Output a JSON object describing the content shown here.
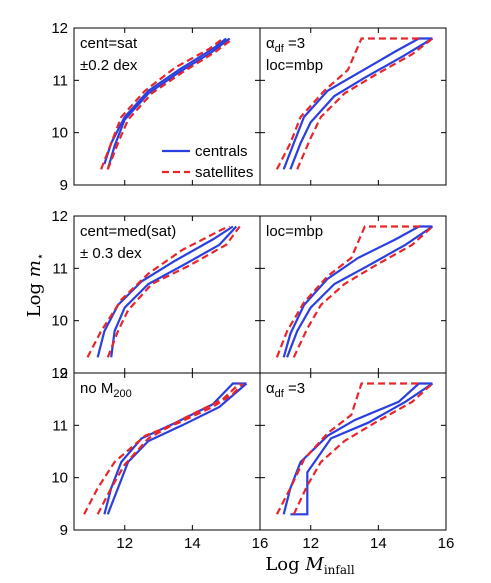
{
  "figure": {
    "xlabel_main": "Log ",
    "xlabel_math": "M",
    "xlabel_sub": "infall",
    "ylabel_main": "Log ",
    "ylabel_math": "m",
    "ylabel_sub": "⋆"
  },
  "colors": {
    "centrals": "#2a3fe0",
    "satellites": "#e8262a",
    "axes": "#000000"
  },
  "legend": {
    "items": [
      {
        "label": "centrals",
        "style": "solid",
        "color": "#2a3fe0"
      },
      {
        "label": "satellites",
        "style": "dashed",
        "color": "#e8262a"
      }
    ],
    "panel": 0
  },
  "chart_data": [
    {
      "type": "line",
      "panel_label_lines": [
        "cent=sat",
        "±0.2 dex"
      ],
      "xlim": [
        10.5,
        16
      ],
      "ylim": [
        9,
        12
      ],
      "xticks": [
        12,
        14,
        16
      ],
      "yticks": [
        9,
        10,
        11,
        12
      ],
      "show_xticklabels": false,
      "show_yticklabels": true,
      "series": [
        {
          "name": "centrals",
          "style": "solid",
          "lines": [
            [
              [
                11.4,
                9.4
              ],
              [
                11.6,
                9.8
              ],
              [
                12.0,
                10.3
              ],
              [
                12.7,
                10.8
              ],
              [
                13.6,
                11.2
              ],
              [
                14.6,
                11.6
              ],
              [
                15.0,
                11.8
              ]
            ],
            [
              [
                11.5,
                9.3
              ],
              [
                11.7,
                9.75
              ],
              [
                12.0,
                10.25
              ],
              [
                12.7,
                10.75
              ],
              [
                13.6,
                11.15
              ],
              [
                14.6,
                11.55
              ],
              [
                15.1,
                11.8
              ]
            ]
          ]
        },
        {
          "name": "satellites",
          "style": "dashed",
          "lines": [
            [
              [
                11.3,
                9.3
              ],
              [
                11.6,
                9.8
              ],
              [
                11.9,
                10.3
              ],
              [
                12.6,
                10.8
              ],
              [
                13.5,
                11.25
              ],
              [
                14.5,
                11.6
              ],
              [
                14.9,
                11.8
              ]
            ],
            [
              [
                11.5,
                9.3
              ],
              [
                11.8,
                9.8
              ],
              [
                12.1,
                10.25
              ],
              [
                12.8,
                10.75
              ],
              [
                13.7,
                11.15
              ],
              [
                14.7,
                11.55
              ],
              [
                15.2,
                11.8
              ]
            ]
          ]
        }
      ]
    },
    {
      "type": "line",
      "panel_label_lines": [
        "αdf =3",
        "loc=mbp"
      ],
      "xlim": [
        10.5,
        16
      ],
      "ylim": [
        9,
        12
      ],
      "xticks": [
        12,
        14,
        16
      ],
      "yticks": [
        9,
        10,
        11,
        12
      ],
      "show_xticklabels": false,
      "show_yticklabels": false,
      "series": [
        {
          "name": "centrals",
          "style": "solid",
          "lines": [
            [
              [
                11.2,
                9.3
              ],
              [
                11.5,
                9.8
              ],
              [
                11.8,
                10.3
              ],
              [
                12.5,
                10.8
              ],
              [
                13.3,
                11.1
              ],
              [
                14.5,
                11.55
              ],
              [
                15.2,
                11.8
              ],
              [
                15.6,
                11.8
              ]
            ],
            [
              [
                11.4,
                9.3
              ],
              [
                11.7,
                9.8
              ],
              [
                12.0,
                10.2
              ],
              [
                12.7,
                10.7
              ],
              [
                13.6,
                11.05
              ],
              [
                14.7,
                11.45
              ],
              [
                15.6,
                11.8
              ]
            ]
          ]
        },
        {
          "name": "satellites",
          "style": "dashed",
          "lines": [
            [
              [
                11.0,
                9.3
              ],
              [
                11.4,
                9.8
              ],
              [
                11.7,
                10.3
              ],
              [
                12.4,
                10.8
              ],
              [
                13.1,
                11.2
              ],
              [
                13.5,
                11.8
              ],
              [
                15.3,
                11.8
              ]
            ],
            [
              [
                11.6,
                9.3
              ],
              [
                12.0,
                9.9
              ],
              [
                12.3,
                10.3
              ],
              [
                13.0,
                10.75
              ],
              [
                13.9,
                11.1
              ],
              [
                15.0,
                11.5
              ],
              [
                15.6,
                11.8
              ]
            ]
          ]
        }
      ]
    },
    {
      "type": "line",
      "panel_label_lines": [
        "cent=med(sat)",
        "± 0.3 dex"
      ],
      "xlim": [
        10.5,
        16
      ],
      "ylim": [
        9,
        12
      ],
      "xticks": [
        12,
        14,
        16
      ],
      "yticks": [
        9,
        10,
        11,
        12
      ],
      "show_xticklabels": false,
      "show_yticklabels": true,
      "series": [
        {
          "name": "centrals",
          "style": "solid",
          "lines": [
            [
              [
                11.2,
                9.3
              ],
              [
                11.4,
                9.8
              ],
              [
                11.8,
                10.3
              ],
              [
                12.5,
                10.75
              ],
              [
                13.5,
                11.15
              ],
              [
                14.6,
                11.55
              ],
              [
                15.2,
                11.8
              ]
            ],
            [
              [
                11.6,
                9.3
              ],
              [
                11.7,
                9.8
              ],
              [
                12.0,
                10.25
              ],
              [
                12.7,
                10.7
              ],
              [
                13.7,
                11.05
              ],
              [
                14.8,
                11.45
              ],
              [
                15.3,
                11.8
              ]
            ]
          ]
        },
        {
          "name": "satellites",
          "style": "dashed",
          "lines": [
            [
              [
                10.9,
                9.3
              ],
              [
                11.3,
                9.8
              ],
              [
                11.9,
                10.4
              ],
              [
                12.7,
                10.9
              ],
              [
                13.7,
                11.35
              ],
              [
                14.9,
                11.75
              ],
              [
                15.1,
                11.8
              ]
            ],
            [
              [
                11.5,
                9.3
              ],
              [
                11.8,
                9.8
              ],
              [
                12.1,
                10.2
              ],
              [
                12.8,
                10.7
              ],
              [
                13.9,
                11.05
              ],
              [
                15.0,
                11.45
              ],
              [
                15.4,
                11.8
              ]
            ]
          ]
        }
      ]
    },
    {
      "type": "line",
      "panel_label_lines": [
        "loc=mbp"
      ],
      "xlim": [
        10.5,
        16
      ],
      "ylim": [
        9,
        12
      ],
      "xticks": [
        12,
        14,
        16
      ],
      "yticks": [
        9,
        10,
        11,
        12
      ],
      "show_xticklabels": false,
      "show_yticklabels": false,
      "series": [
        {
          "name": "centrals",
          "style": "solid",
          "lines": [
            [
              [
                11.2,
                9.3
              ],
              [
                11.4,
                9.75
              ],
              [
                11.8,
                10.3
              ],
              [
                12.5,
                10.8
              ],
              [
                13.4,
                11.2
              ],
              [
                14.5,
                11.55
              ],
              [
                15.2,
                11.8
              ],
              [
                15.6,
                11.8
              ]
            ],
            [
              [
                11.3,
                9.3
              ],
              [
                11.6,
                9.8
              ],
              [
                12.0,
                10.25
              ],
              [
                12.7,
                10.7
              ],
              [
                13.7,
                11.05
              ],
              [
                14.8,
                11.45
              ],
              [
                15.6,
                11.8
              ]
            ]
          ]
        },
        {
          "name": "satellites",
          "style": "dashed",
          "lines": [
            [
              [
                11.0,
                9.3
              ],
              [
                11.3,
                9.8
              ],
              [
                11.8,
                10.35
              ],
              [
                12.5,
                10.85
              ],
              [
                13.2,
                11.2
              ],
              [
                13.6,
                11.8
              ],
              [
                15.3,
                11.8
              ]
            ],
            [
              [
                11.5,
                9.3
              ],
              [
                11.9,
                9.85
              ],
              [
                12.3,
                10.3
              ],
              [
                13.0,
                10.7
              ],
              [
                13.9,
                11.05
              ],
              [
                15.0,
                11.45
              ],
              [
                15.6,
                11.8
              ]
            ]
          ]
        }
      ]
    },
    {
      "type": "line",
      "panel_label_lines": [
        "no M200"
      ],
      "xlim": [
        10.5,
        16
      ],
      "ylim": [
        9,
        12
      ],
      "xticks": [
        12,
        14,
        16
      ],
      "yticks": [
        9,
        10,
        11,
        12
      ],
      "show_xticklabels": true,
      "show_yticklabels": true,
      "series": [
        {
          "name": "centrals",
          "style": "solid",
          "lines": [
            [
              [
                11.4,
                9.3
              ],
              [
                11.6,
                9.8
              ],
              [
                11.9,
                10.3
              ],
              [
                12.5,
                10.75
              ],
              [
                13.5,
                11.05
              ],
              [
                14.6,
                11.4
              ],
              [
                15.2,
                11.8
              ],
              [
                15.6,
                11.8
              ]
            ],
            [
              [
                11.5,
                9.3
              ],
              [
                11.8,
                9.8
              ],
              [
                12.1,
                10.3
              ],
              [
                12.7,
                10.7
              ],
              [
                13.7,
                11.0
              ],
              [
                14.8,
                11.35
              ],
              [
                15.6,
                11.8
              ]
            ]
          ]
        },
        {
          "name": "satellites",
          "style": "dashed",
          "lines": [
            [
              [
                10.8,
                9.3
              ],
              [
                11.2,
                9.8
              ],
              [
                11.7,
                10.3
              ],
              [
                12.6,
                10.8
              ],
              [
                13.6,
                11.05
              ],
              [
                14.6,
                11.35
              ],
              [
                15.2,
                11.6
              ],
              [
                15.5,
                11.8
              ]
            ],
            [
              [
                11.2,
                9.3
              ],
              [
                11.6,
                9.8
              ],
              [
                12.0,
                10.25
              ],
              [
                12.7,
                10.75
              ],
              [
                13.8,
                11.15
              ],
              [
                14.9,
                11.5
              ],
              [
                15.4,
                11.8
              ]
            ]
          ]
        }
      ]
    },
    {
      "type": "line",
      "panel_label_lines": [
        "αdf =3"
      ],
      "xlim": [
        10.5,
        16
      ],
      "ylim": [
        9,
        12
      ],
      "xticks": [
        12,
        14,
        16
      ],
      "yticks": [
        9,
        10,
        11,
        12
      ],
      "show_xticklabels": true,
      "show_yticklabels": false,
      "series": [
        {
          "name": "centrals",
          "style": "solid",
          "lines": [
            [
              [
                11.2,
                9.3
              ],
              [
                11.4,
                9.8
              ],
              [
                11.7,
                10.3
              ],
              [
                12.5,
                10.8
              ],
              [
                13.3,
                11.1
              ],
              [
                14.6,
                11.45
              ],
              [
                15.2,
                11.8
              ],
              [
                15.6,
                11.8
              ]
            ],
            [
              [
                11.4,
                9.3
              ],
              [
                11.9,
                9.3
              ],
              [
                11.9,
                10.1
              ],
              [
                12.6,
                10.75
              ],
              [
                13.7,
                11.05
              ],
              [
                14.8,
                11.45
              ],
              [
                15.6,
                11.8
              ]
            ]
          ]
        },
        {
          "name": "satellites",
          "style": "dashed",
          "lines": [
            [
              [
                11.0,
                9.3
              ],
              [
                11.4,
                9.8
              ],
              [
                11.8,
                10.35
              ],
              [
                12.5,
                10.85
              ],
              [
                13.2,
                11.2
              ],
              [
                13.5,
                11.8
              ],
              [
                15.3,
                11.8
              ]
            ],
            [
              [
                11.5,
                9.3
              ],
              [
                11.9,
                9.85
              ],
              [
                12.3,
                10.3
              ],
              [
                13.0,
                10.7
              ],
              [
                13.9,
                11.05
              ],
              [
                15.0,
                11.45
              ],
              [
                15.6,
                11.8
              ]
            ]
          ]
        }
      ]
    }
  ]
}
